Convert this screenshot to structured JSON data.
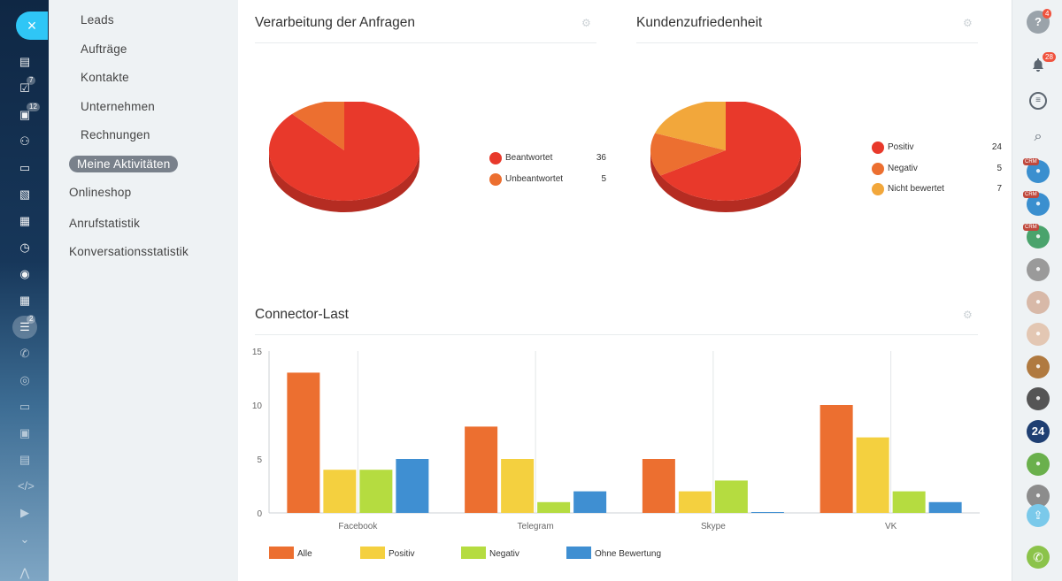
{
  "left_rail": {
    "close_symbol": "×",
    "icons": [
      {
        "name": "feed-icon",
        "badge": ""
      },
      {
        "name": "tasks-icon",
        "badge": "7"
      },
      {
        "name": "chat-icon",
        "badge": "12"
      },
      {
        "name": "groups-icon",
        "badge": ""
      },
      {
        "name": "drive-icon",
        "badge": ""
      },
      {
        "name": "documents-icon",
        "badge": ""
      },
      {
        "name": "calendar-icon",
        "badge": ""
      },
      {
        "name": "time-icon",
        "badge": ""
      },
      {
        "name": "robot-icon",
        "badge": ""
      },
      {
        "name": "apps-icon",
        "badge": ""
      },
      {
        "name": "filter-icon",
        "badge": "2"
      },
      {
        "name": "phone-icon",
        "badge": ""
      },
      {
        "name": "target-icon",
        "badge": ""
      },
      {
        "name": "sites-icon",
        "badge": ""
      },
      {
        "name": "contact-card-icon",
        "badge": ""
      },
      {
        "name": "knowledge-icon",
        "badge": ""
      },
      {
        "name": "code-icon",
        "badge": ""
      },
      {
        "name": "video-icon",
        "badge": ""
      },
      {
        "name": "more-icon",
        "badge": ""
      },
      {
        "name": "structure-icon",
        "badge": ""
      }
    ]
  },
  "submenu": {
    "items": [
      {
        "label": "Leads",
        "level": 2
      },
      {
        "label": "Aufträge",
        "level": 2
      },
      {
        "label": "Kontakte",
        "level": 2
      },
      {
        "label": "Unternehmen",
        "level": 2
      },
      {
        "label": "Rechnungen",
        "level": 2
      },
      {
        "label": "Meine Aktivitäten",
        "level": 1,
        "active": true
      },
      {
        "label": "Onlineshop",
        "level": 1
      },
      {
        "label": "Anrufstatistik",
        "level": 1
      },
      {
        "label": "Konversationsstatistik",
        "level": 1
      }
    ]
  },
  "panels": {
    "requests_title": "Verarbeitung der Anfragen",
    "satisfaction_title": "Kundenzufriedenheit",
    "connector_title": "Connector-Last"
  },
  "chart_data": [
    {
      "type": "pie",
      "title": "Verarbeitung der Anfragen",
      "slices": [
        {
          "label": "Beantwortet",
          "value": 36,
          "color": "#e8392b"
        },
        {
          "label": "Unbeantwortet",
          "value": 5,
          "color": "#ec6f30"
        }
      ]
    },
    {
      "type": "pie",
      "title": "Kundenzufriedenheit",
      "slices": [
        {
          "label": "Positiv",
          "value": 24,
          "color": "#e8392b"
        },
        {
          "label": "Negativ",
          "value": 5,
          "color": "#ec6f30"
        },
        {
          "label": "Nicht bewertet",
          "value": 7,
          "color": "#f2a73b"
        }
      ]
    },
    {
      "type": "bar",
      "title": "Connector-Last",
      "categories": [
        "Facebook",
        "Telegram",
        "Skype",
        "VK"
      ],
      "ylim": [
        0,
        15
      ],
      "yticks": [
        0,
        5,
        10,
        15
      ],
      "grid": true,
      "legend_position": "bottom",
      "series": [
        {
          "name": "Alle",
          "color": "#ec6f30",
          "values": [
            13,
            8,
            5,
            10
          ]
        },
        {
          "name": "Positiv",
          "color": "#f4d03f",
          "values": [
            4,
            5,
            2,
            7
          ]
        },
        {
          "name": "Negativ",
          "color": "#b5dc40",
          "values": [
            4,
            1,
            3,
            2
          ]
        },
        {
          "name": "Ohne Bewertung",
          "color": "#3f8fd2",
          "values": [
            5,
            2,
            0,
            1
          ]
        }
      ]
    }
  ],
  "right_rail": {
    "help_badge": "4",
    "notifications_badge": "28",
    "crm_label": "CRM",
    "bitrix_label": "24"
  }
}
